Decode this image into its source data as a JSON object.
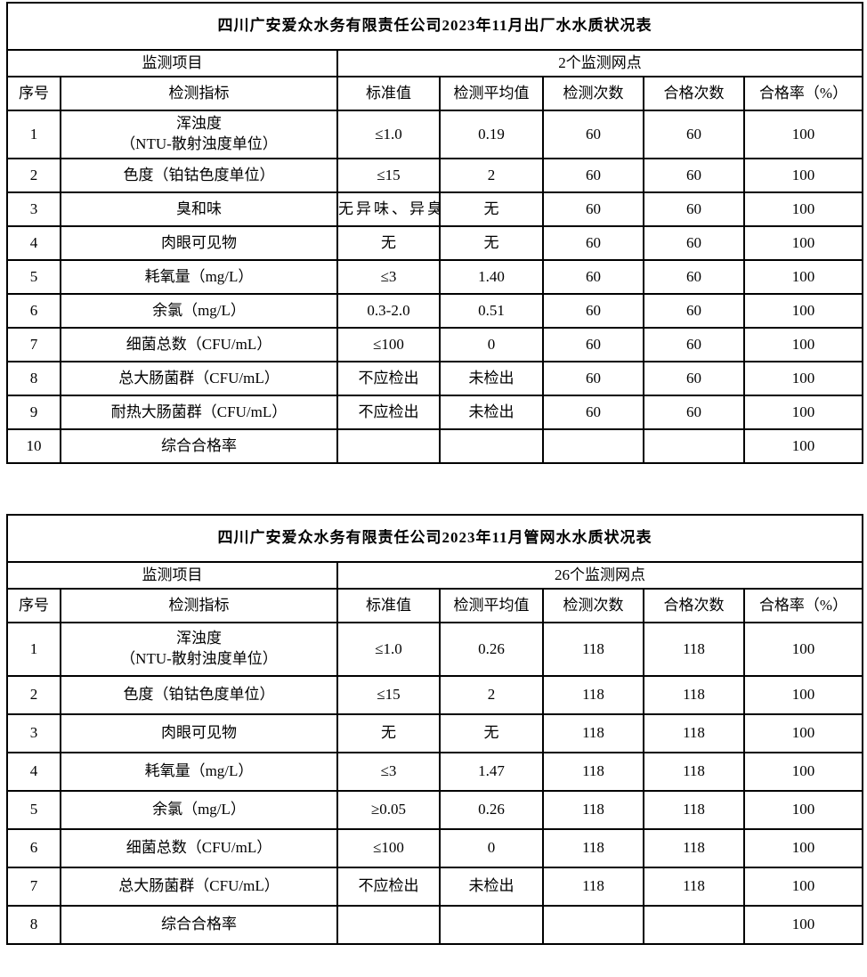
{
  "tables": [
    {
      "title": "四川广安爱众水务有限责任公司2023年11月出厂水水质状况表",
      "monitor_label": "监测项目",
      "points_label": "2个监测网点",
      "headers": [
        "序号",
        "检测指标",
        "标准值",
        "检测平均值",
        "检测次数",
        "合格次数",
        "合格率（%）"
      ],
      "rows": [
        {
          "no": "1",
          "indicator": "浑浊度\n（NTU-散射浊度单位）",
          "standard": "≤1.0",
          "average": "0.19",
          "tests": "60",
          "passed": "60",
          "rate": "100"
        },
        {
          "no": "2",
          "indicator": "色度（铂钴色度单位）",
          "standard": "≤15",
          "average": "2",
          "tests": "60",
          "passed": "60",
          "rate": "100"
        },
        {
          "no": "3",
          "indicator": "臭和味",
          "standard": "无异味、异臭",
          "average": "无",
          "tests": "60",
          "passed": "60",
          "rate": "100"
        },
        {
          "no": "4",
          "indicator": "肉眼可见物",
          "standard": "无",
          "average": "无",
          "tests": "60",
          "passed": "60",
          "rate": "100"
        },
        {
          "no": "5",
          "indicator": "耗氧量（mg/L）",
          "standard": "≤3",
          "average": "1.40",
          "tests": "60",
          "passed": "60",
          "rate": "100"
        },
        {
          "no": "6",
          "indicator": "余氯（mg/L）",
          "standard": "0.3-2.0",
          "average": "0.51",
          "tests": "60",
          "passed": "60",
          "rate": "100"
        },
        {
          "no": "7",
          "indicator": "细菌总数（CFU/mL）",
          "standard": "≤100",
          "average": "0",
          "tests": "60",
          "passed": "60",
          "rate": "100"
        },
        {
          "no": "8",
          "indicator": "总大肠菌群（CFU/mL）",
          "standard": "不应检出",
          "average": "未检出",
          "tests": "60",
          "passed": "60",
          "rate": "100"
        },
        {
          "no": "9",
          "indicator": "耐热大肠菌群（CFU/mL）",
          "standard": "不应检出",
          "average": "未检出",
          "tests": "60",
          "passed": "60",
          "rate": "100"
        },
        {
          "no": "10",
          "indicator": "综合合格率",
          "standard": "",
          "average": "",
          "tests": "",
          "passed": "",
          "rate": "100"
        }
      ]
    },
    {
      "title": "四川广安爱众水务有限责任公司2023年11月管网水水质状况表",
      "monitor_label": "监测项目",
      "points_label": "26个监测网点",
      "headers": [
        "序号",
        "检测指标",
        "标准值",
        "检测平均值",
        "检测次数",
        "合格次数",
        "合格率（%）"
      ],
      "rows": [
        {
          "no": "1",
          "indicator": "浑浊度\n（NTU-散射浊度单位）",
          "standard": "≤1.0",
          "average": "0.26",
          "tests": "118",
          "passed": "118",
          "rate": "100"
        },
        {
          "no": "2",
          "indicator": "色度（铂钴色度单位）",
          "standard": "≤15",
          "average": "2",
          "tests": "118",
          "passed": "118",
          "rate": "100"
        },
        {
          "no": "3",
          "indicator": "肉眼可见物",
          "standard": "无",
          "average": "无",
          "tests": "118",
          "passed": "118",
          "rate": "100"
        },
        {
          "no": "4",
          "indicator": "耗氧量（mg/L）",
          "standard": "≤3",
          "average": "1.47",
          "tests": "118",
          "passed": "118",
          "rate": "100"
        },
        {
          "no": "5",
          "indicator": "余氯（mg/L）",
          "standard": "≥0.05",
          "average": "0.26",
          "tests": "118",
          "passed": "118",
          "rate": "100"
        },
        {
          "no": "6",
          "indicator": "细菌总数（CFU/mL）",
          "standard": "≤100",
          "average": "0",
          "tests": "118",
          "passed": "118",
          "rate": "100"
        },
        {
          "no": "7",
          "indicator": "总大肠菌群（CFU/mL）",
          "standard": "不应检出",
          "average": "未检出",
          "tests": "118",
          "passed": "118",
          "rate": "100"
        },
        {
          "no": "8",
          "indicator": "综合合格率",
          "standard": "",
          "average": "",
          "tests": "",
          "passed": "",
          "rate": "100"
        }
      ]
    }
  ]
}
